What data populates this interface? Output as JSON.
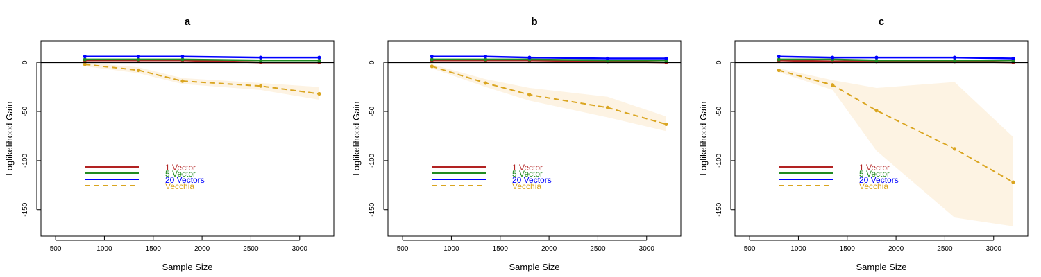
{
  "figure": {
    "panels_count": 3
  },
  "chart_data": [
    {
      "type": "line",
      "title": "a",
      "xlabel": "Sample Size",
      "ylabel": "Loglikelihood Gain",
      "xlim": [
        350,
        3350
      ],
      "ylim": [
        -177,
        22
      ],
      "xticks": [
        500,
        1000,
        1500,
        2000,
        2500,
        3000
      ],
      "yticks": [
        0,
        -50,
        -100,
        -150
      ],
      "baseline": 0,
      "legend": [
        "1 Vector",
        "5 Vector",
        "20 Vectors",
        "Vecchia"
      ],
      "legend_position": "bottom-left",
      "series": [
        {
          "name": "1 Vector",
          "color": "#b22222",
          "dash": "solid",
          "x": [
            800,
            1350,
            1800,
            2600,
            3200
          ],
          "y": [
            2,
            2,
            2,
            0,
            0
          ]
        },
        {
          "name": "5 Vector",
          "color": "#228b22",
          "dash": "solid",
          "x": [
            800,
            1350,
            1800,
            2600,
            3200
          ],
          "y": [
            3,
            3,
            3,
            2,
            2
          ]
        },
        {
          "name": "20 Vectors",
          "color": "#0000ff",
          "dash": "solid",
          "x": [
            800,
            1350,
            1800,
            2600,
            3200
          ],
          "y": [
            6,
            6,
            6,
            5,
            5
          ]
        },
        {
          "name": "Vecchia",
          "color": "#daa520",
          "dash": "dashed",
          "x": [
            800,
            1350,
            1800,
            2600,
            3200
          ],
          "y": [
            -2,
            -8,
            -19,
            -24,
            -32
          ],
          "band_lower": [
            -4,
            -11,
            -22,
            -28,
            -38
          ],
          "band_upper": [
            0,
            -5,
            -16,
            -21,
            -25
          ]
        }
      ]
    },
    {
      "type": "line",
      "title": "b",
      "xlabel": "Sample Size",
      "ylabel": "Loglikelihood Gain",
      "xlim": [
        350,
        3350
      ],
      "ylim": [
        -177,
        22
      ],
      "xticks": [
        500,
        1000,
        1500,
        2000,
        2500,
        3000
      ],
      "yticks": [
        0,
        -50,
        -100,
        -150
      ],
      "baseline": 0,
      "legend": [
        "1 Vector",
        "5 Vector",
        "20 Vectors",
        "Vecchia"
      ],
      "legend_position": "bottom-left",
      "series": [
        {
          "name": "1 Vector",
          "color": "#b22222",
          "dash": "solid",
          "x": [
            800,
            1350,
            1800,
            2600,
            3200
          ],
          "y": [
            2,
            2,
            2,
            1,
            0
          ]
        },
        {
          "name": "5 Vector",
          "color": "#228b22",
          "dash": "solid",
          "x": [
            800,
            1350,
            1800,
            2600,
            3200
          ],
          "y": [
            3,
            3,
            3,
            2,
            2
          ]
        },
        {
          "name": "20 Vectors",
          "color": "#0000ff",
          "dash": "solid",
          "x": [
            800,
            1350,
            1800,
            2600,
            3200
          ],
          "y": [
            6,
            6,
            5,
            4,
            4
          ]
        },
        {
          "name": "Vecchia",
          "color": "#daa520",
          "dash": "dashed",
          "x": [
            800,
            1350,
            1800,
            2600,
            3200
          ],
          "y": [
            -4,
            -21,
            -33,
            -46,
            -63
          ],
          "band_lower": [
            -6,
            -25,
            -39,
            -56,
            -70
          ],
          "band_upper": [
            -2,
            -17,
            -26,
            -35,
            -55
          ]
        }
      ]
    },
    {
      "type": "line",
      "title": "c",
      "xlabel": "Sample Size",
      "ylabel": "Loglikelihood Gain",
      "xlim": [
        350,
        3350
      ],
      "ylim": [
        -177,
        22
      ],
      "xticks": [
        500,
        1000,
        1500,
        2000,
        2500,
        3000
      ],
      "yticks": [
        0,
        -50,
        -100,
        -150
      ],
      "baseline": 0,
      "legend": [
        "1 Vector",
        "5 Vector",
        "20 Vectors",
        "Vecchia"
      ],
      "legend_position": "bottom-left",
      "series": [
        {
          "name": "1 Vector",
          "color": "#b22222",
          "dash": "solid",
          "x": [
            800,
            1350,
            1800,
            2600,
            3200
          ],
          "y": [
            2,
            1,
            1,
            1,
            0
          ]
        },
        {
          "name": "5 Vector",
          "color": "#228b22",
          "dash": "solid",
          "x": [
            800,
            1350,
            1800,
            2600,
            3200
          ],
          "y": [
            3,
            3,
            2,
            2,
            2
          ]
        },
        {
          "name": "20 Vectors",
          "color": "#0000ff",
          "dash": "solid",
          "x": [
            800,
            1350,
            1800,
            2600,
            3200
          ],
          "y": [
            6,
            5,
            5,
            5,
            4
          ]
        },
        {
          "name": "Vecchia",
          "color": "#daa520",
          "dash": "dashed",
          "x": [
            800,
            1350,
            1800,
            2600,
            3200
          ],
          "y": [
            -8,
            -23,
            -49,
            -88,
            -122
          ],
          "band_lower": [
            -10,
            -28,
            -90,
            -158,
            -167
          ],
          "band_upper": [
            -6,
            -18,
            -26,
            -20,
            -76
          ]
        }
      ]
    }
  ]
}
